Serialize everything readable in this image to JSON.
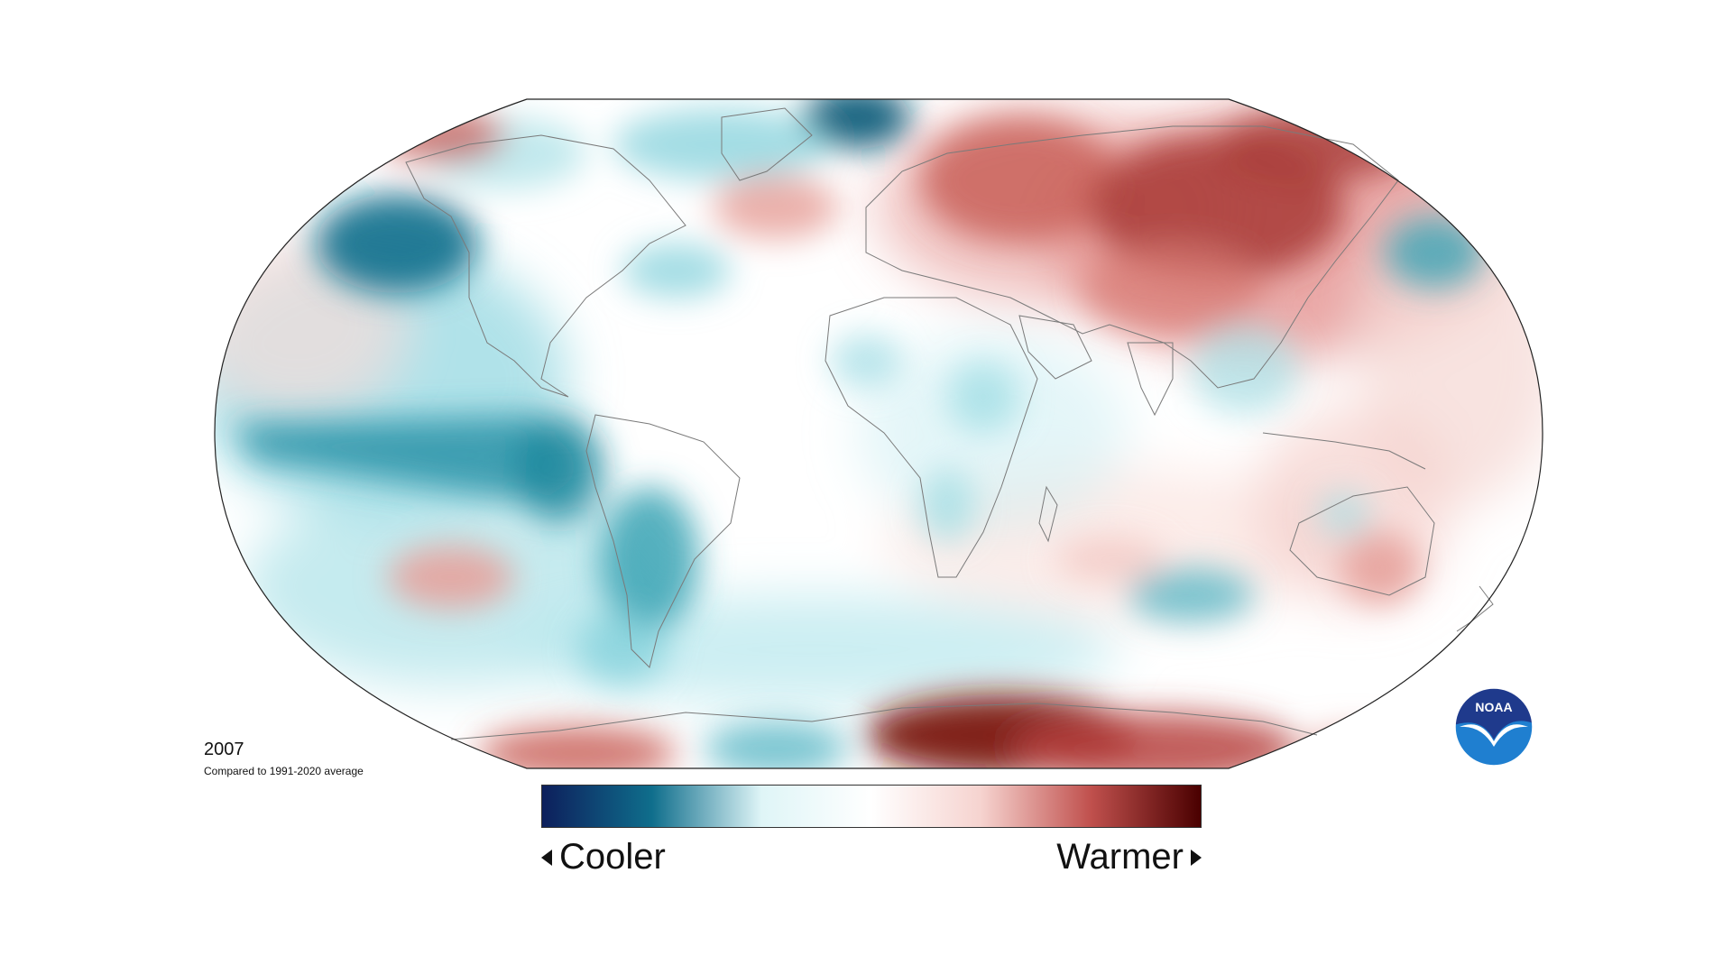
{
  "map": {
    "projection": "robinson",
    "anomaly_regions": [
      {
        "name": "north-pacific-cool",
        "tone": "cool",
        "strength": 0.85
      },
      {
        "name": "equatorial-pacific-cool",
        "tone": "cool",
        "strength": 0.75
      },
      {
        "name": "south-pacific-warm",
        "tone": "warm",
        "strength": 0.35
      },
      {
        "name": "siberia-warm",
        "tone": "warm",
        "strength": 0.75
      },
      {
        "name": "europe-warm",
        "tone": "warm",
        "strength": 0.5
      },
      {
        "name": "greenland-sea-warm",
        "tone": "warm",
        "strength": 0.35
      },
      {
        "name": "arctic-cool",
        "tone": "cool",
        "strength": 0.9
      },
      {
        "name": "antarctica-warm",
        "tone": "warm",
        "strength": 1.0
      },
      {
        "name": "south-america-cool",
        "tone": "cool",
        "strength": 0.6
      },
      {
        "name": "southern-ocean-cool",
        "tone": "cool",
        "strength": 0.45
      },
      {
        "name": "australia-warm",
        "tone": "warm",
        "strength": 0.4
      },
      {
        "name": "west-pacific-cool",
        "tone": "cool",
        "strength": 0.5
      }
    ]
  },
  "caption": {
    "year": "2007",
    "subtitle": "Compared to 1991-2020 average"
  },
  "legend": {
    "cooler_label": "Cooler",
    "warmer_label": "Warmer",
    "colors": [
      "#0d1f5c",
      "#0f6e8c",
      "#dff5f7",
      "#ffffff",
      "#f6d3cf",
      "#c0504d",
      "#4a0000"
    ]
  },
  "logo": {
    "text": "NOAA",
    "colors": {
      "top": "#1f3a8c",
      "bottom": "#1f7fd0",
      "gull": "#ffffff"
    }
  }
}
